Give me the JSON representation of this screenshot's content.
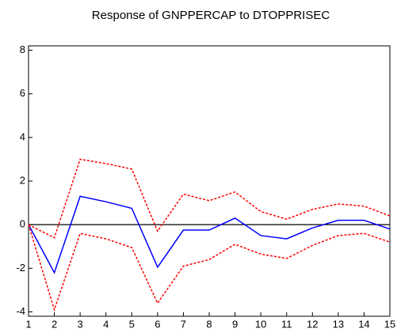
{
  "chart_data": {
    "type": "line",
    "title": "Response of GNPPERCAP to DTOPPRISEC",
    "x": [
      1,
      2,
      3,
      4,
      5,
      6,
      7,
      8,
      9,
      10,
      11,
      12,
      13,
      14,
      15
    ],
    "xlim": [
      1,
      15
    ],
    "xticks": [
      1,
      2,
      3,
      4,
      5,
      6,
      7,
      8,
      9,
      10,
      11,
      12,
      13,
      14,
      15
    ],
    "ylim": [
      -4.2,
      8.2
    ],
    "yticks": [
      -4,
      -2,
      0,
      2,
      4,
      6,
      8
    ],
    "zero_line": true,
    "series": [
      {
        "color": "#0000ff",
        "dashed": false,
        "values": [
          0,
          -2.2,
          1.3,
          1.05,
          0.75,
          -1.95,
          -0.25,
          -0.25,
          0.3,
          -0.5,
          -0.65,
          -0.15,
          0.2,
          0.2,
          -0.2
        ]
      },
      {
        "color": "#ff0000",
        "dashed": true,
        "values": [
          0,
          -0.6,
          3.0,
          2.8,
          2.55,
          -0.3,
          1.4,
          1.1,
          1.5,
          0.6,
          0.25,
          0.7,
          0.95,
          0.85,
          0.4
        ]
      },
      {
        "color": "#ff0000",
        "dashed": true,
        "values": [
          0,
          -3.9,
          -0.4,
          -0.65,
          -1.05,
          -3.6,
          -1.9,
          -1.6,
          -0.9,
          -1.35,
          -1.55,
          -0.95,
          -0.5,
          -0.4,
          -0.8
        ]
      }
    ]
  }
}
